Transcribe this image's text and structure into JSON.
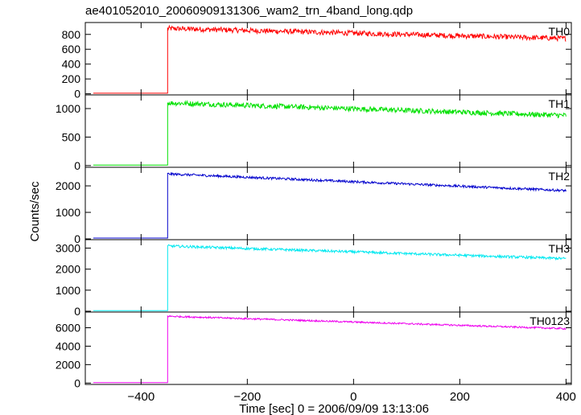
{
  "title": "ae401052010_20060909131306_wam2_trn_4band_long.qdp",
  "xlabel": "Time [sec] 0 = 2006/09/09 13:13:06",
  "ylabel": "Counts/sec",
  "chart_data": {
    "type": "line",
    "x_range": [
      -505,
      410
    ],
    "x_ticks": [
      -400,
      -200,
      0,
      200,
      400
    ],
    "x_tick_labels": [
      "−400",
      "−200",
      "0",
      "200",
      "400"
    ],
    "trigger_x": -350,
    "x_start": -490,
    "x_end": 400,
    "panels": [
      {
        "name": "TH0",
        "color": "#ff0000",
        "ylim": [
          -15,
          960
        ],
        "yticks": [
          0,
          200,
          400,
          600,
          800
        ],
        "pre": 8,
        "peak": 880,
        "end": 745,
        "noise": 35
      },
      {
        "name": "TH1",
        "color": "#00e000",
        "ylim": [
          -30,
          1240
        ],
        "yticks": [
          0,
          500,
          1000
        ],
        "pre": 10,
        "peak": 1100,
        "end": 880,
        "noise": 45
      },
      {
        "name": "TH2",
        "color": "#0000cc",
        "ylim": [
          -30,
          2700
        ],
        "yticks": [
          0,
          1000,
          2000
        ],
        "pre": 30,
        "peak": 2450,
        "end": 1820,
        "noise": 45
      },
      {
        "name": "TH3",
        "color": "#00e8f0",
        "ylim": [
          -40,
          3400
        ],
        "yticks": [
          0,
          1000,
          2000,
          3000
        ],
        "pre": 30,
        "peak": 3100,
        "end": 2500,
        "noise": 60
      },
      {
        "name": "TH0123",
        "color": "#ee00ee",
        "ylim": [
          -150,
          7700
        ],
        "yticks": [
          0,
          2000,
          4000,
          6000
        ],
        "pre": 50,
        "peak": 7250,
        "end": 5900,
        "noise": 90
      }
    ]
  }
}
